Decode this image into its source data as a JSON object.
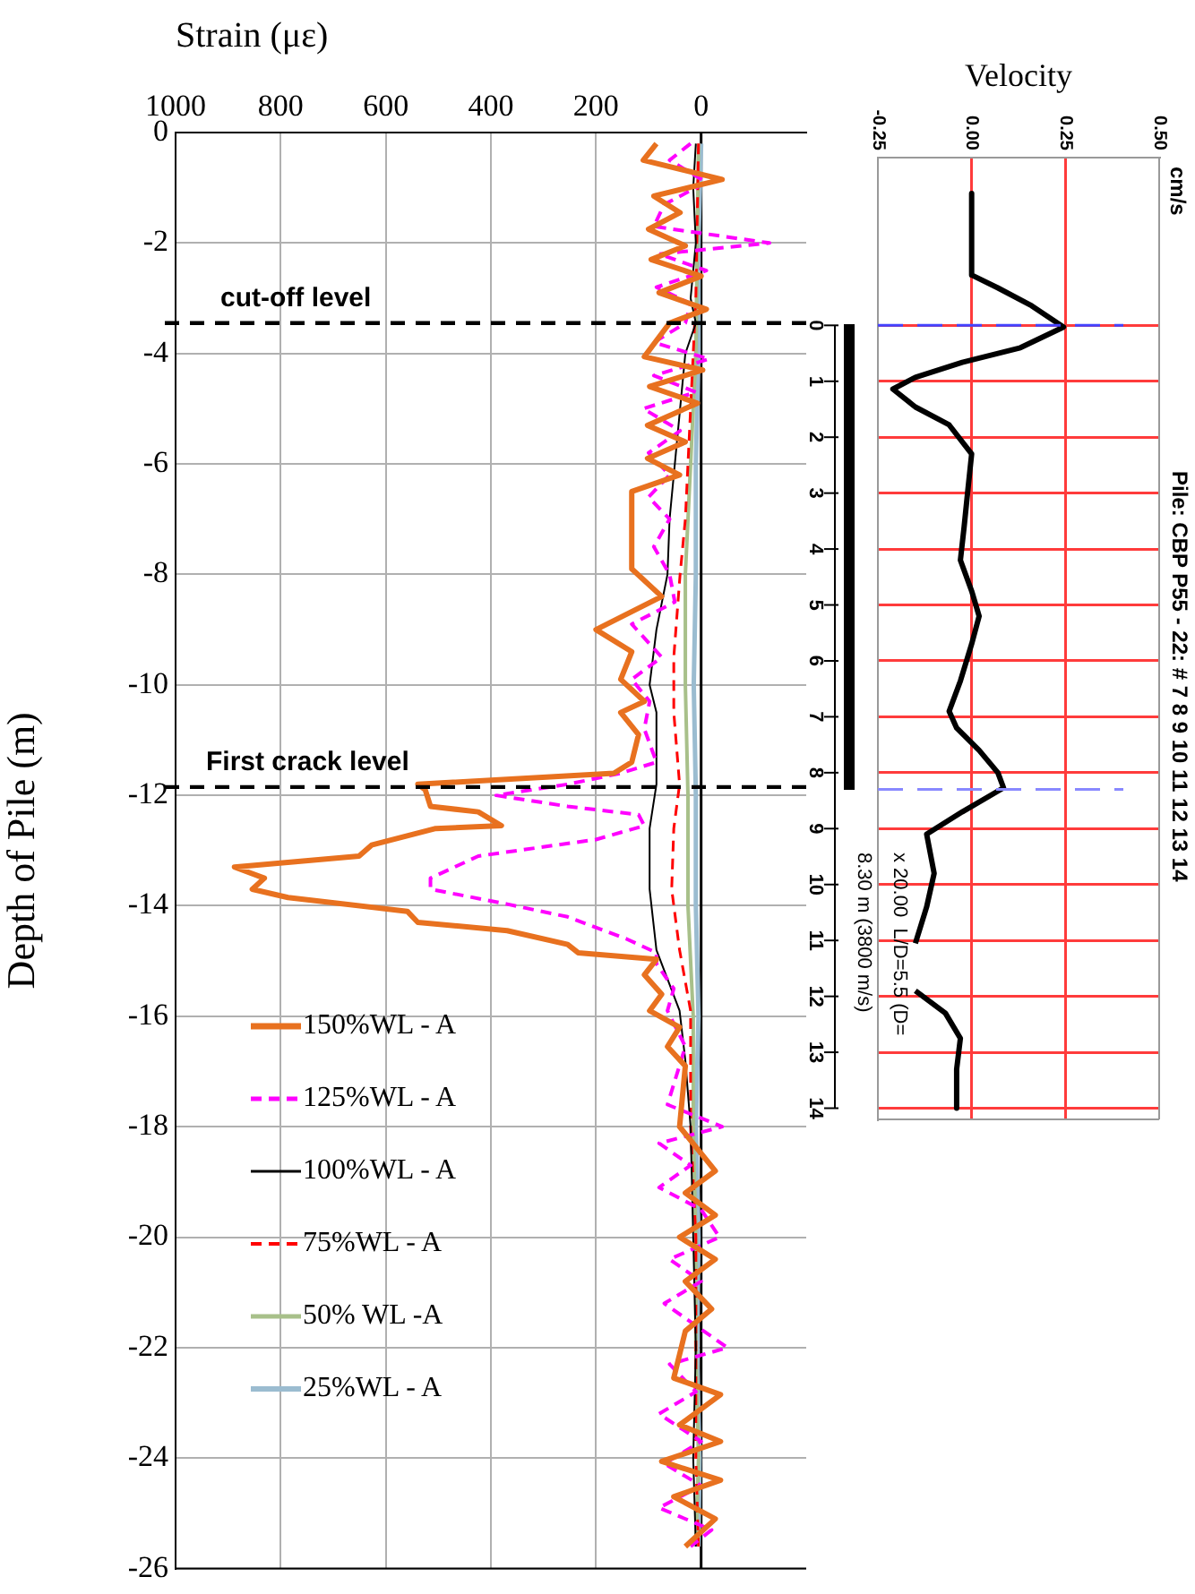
{
  "chart_data": [
    {
      "type": "line",
      "xlabel": "Strain (με)",
      "ylabel": "Depth of Pile (m)",
      "xlim": [
        1000,
        -200
      ],
      "xticks": [
        1000,
        800,
        600,
        400,
        200,
        0
      ],
      "ylim": [
        -26,
        0
      ],
      "yticks": [
        0,
        -2,
        -4,
        -6,
        -8,
        -10,
        -12,
        -14,
        -16,
        -18,
        -20,
        -22,
        -24,
        -26
      ],
      "grid": true,
      "legend": "bottom left",
      "ref_lines": [
        {
          "axis": "y",
          "value": -3.45,
          "label": "cut-off level",
          "color": "#000000",
          "line_style": "dashed"
        },
        {
          "axis": "y",
          "value": -11.85,
          "label": "First crack level",
          "color": "#000000",
          "line_style": "dashed"
        },
        {
          "axis": "x",
          "value": 0,
          "color": "#000000",
          "line_style": "solid"
        }
      ],
      "series": [
        {
          "name": "150%WL - A",
          "color": "#e8711f",
          "line_style": "solid",
          "x": [
            85,
            110,
            -40,
            90,
            40,
            100,
            30,
            95,
            0,
            80,
            -10,
            60,
            108,
            -3,
            98,
            7,
            102,
            30,
            102,
            41,
            132,
            132,
            75,
            200,
            132,
            153,
            108,
            153,
            119,
            132,
            166,
            539,
            525,
            515,
            424,
            380,
            505,
            627,
            651,
            888,
            831,
            854,
            786,
            559,
            539,
            369,
            254,
            234,
            85,
            108,
            75,
            98,
            41,
            64,
            30,
            41,
            -27,
            30,
            -27,
            41,
            -27,
            30,
            -20,
            30,
            52,
            -37,
            41,
            -37,
            75,
            -37,
            52,
            -27,
            30
          ],
          "values": [
            -0.2,
            -0.5,
            -0.85,
            -1.15,
            -1.45,
            -1.75,
            -2.05,
            -2.3,
            -2.6,
            -2.9,
            -3.2,
            -3.45,
            -4.06,
            -4.3,
            -4.6,
            -4.9,
            -5.3,
            -5.6,
            -5.9,
            -6.2,
            -6.5,
            -7.9,
            -8.4,
            -9.0,
            -9.4,
            -9.9,
            -10.3,
            -10.5,
            -10.9,
            -11.4,
            -11.6,
            -11.8,
            -11.9,
            -12.2,
            -12.3,
            -12.55,
            -12.6,
            -12.9,
            -13.1,
            -13.3,
            -13.5,
            -13.7,
            -13.85,
            -14.1,
            -14.3,
            -14.45,
            -14.7,
            -14.85,
            -14.97,
            -15.25,
            -15.6,
            -15.9,
            -16.2,
            -16.55,
            -16.9,
            -18.0,
            -18.8,
            -19.2,
            -19.6,
            -20.0,
            -20.4,
            -20.8,
            -21.3,
            -21.7,
            -22.55,
            -22.85,
            -23.4,
            -23.7,
            -24.06,
            -24.4,
            -24.7,
            -25.1,
            -25.6
          ]
        },
        {
          "name": "125%WL - A",
          "color": "#ff00ff",
          "line_style": "dashed",
          "x": [
            20,
            60,
            -10,
            70,
            90,
            -130,
            80,
            -10,
            85,
            20,
            30,
            90,
            -15,
            90,
            10,
            110,
            40,
            100,
            60,
            100,
            60,
            90,
            60,
            50,
            132,
            75,
            132,
            98,
            108,
            85,
            153,
            254,
            390,
            254,
            119,
            108,
            200,
            424,
            515,
            515,
            369,
            254,
            142,
            85,
            85,
            52,
            64,
            30,
            64,
            -40,
            80,
            20,
            80,
            0,
            -35,
            60,
            0,
            70,
            10,
            -50,
            60,
            10,
            80,
            0,
            70,
            0,
            80,
            -20,
            20
          ],
          "values": [
            -0.2,
            -0.5,
            -0.9,
            -1.3,
            -1.7,
            -2.0,
            -2.2,
            -2.5,
            -2.8,
            -3.1,
            -3.45,
            -3.8,
            -4.1,
            -4.4,
            -4.7,
            -5.0,
            -5.4,
            -5.8,
            -6.2,
            -6.6,
            -7.0,
            -7.5,
            -8.0,
            -8.5,
            -8.9,
            -9.5,
            -9.9,
            -10.3,
            -10.8,
            -11.4,
            -11.6,
            -11.8,
            -12.0,
            -12.2,
            -12.35,
            -12.55,
            -12.8,
            -13.1,
            -13.5,
            -13.7,
            -13.97,
            -14.2,
            -14.6,
            -14.85,
            -15.05,
            -15.5,
            -15.9,
            -16.55,
            -17.6,
            -18.0,
            -18.3,
            -18.7,
            -19.1,
            -19.5,
            -20.0,
            -20.4,
            -20.8,
            -21.2,
            -21.6,
            -22.0,
            -22.3,
            -22.8,
            -23.2,
            -23.7,
            -24.1,
            -24.5,
            -24.9,
            -25.3,
            -25.6
          ]
        },
        {
          "name": "100%WL - A",
          "color": "#000000",
          "line_style": "solid",
          "x": [
            10,
            15,
            10,
            20,
            10,
            30,
            40,
            50,
            60,
            64,
            85,
            98,
            85,
            85,
            98,
            98,
            85,
            41,
            30,
            20,
            15,
            10,
            15,
            10
          ],
          "values": [
            -0.2,
            -1,
            -2,
            -3,
            -3.45,
            -4,
            -5,
            -6,
            -7,
            -8,
            -9,
            -10,
            -10.5,
            -11.8,
            -12.6,
            -13.7,
            -14.8,
            -15.9,
            -16.8,
            -18,
            -20,
            -22,
            -24,
            -25.6
          ]
        },
        {
          "name": "75%WL - A",
          "color": "#ff0000",
          "line_style": "dashed",
          "x": [
            5,
            10,
            20,
            30,
            40,
            52,
            52,
            41,
            52,
            56,
            41,
            20,
            20,
            10,
            10,
            10,
            5
          ],
          "values": [
            -0.2,
            -3,
            -5,
            -7,
            -8,
            -9.5,
            -10.5,
            -11.8,
            -12.6,
            -13.7,
            -14.8,
            -15.9,
            -18,
            -20,
            -22,
            -24,
            -25.6
          ]
        },
        {
          "name": "50% WL -A",
          "color": "#a8c08a",
          "line_style": "solid",
          "x": [
            5,
            10,
            20,
            30,
            30,
            25,
            25,
            15,
            15,
            10,
            10,
            5,
            10
          ],
          "values": [
            -0.2,
            -4,
            -6,
            -8,
            -10,
            -12,
            -14,
            -16,
            -18,
            -20,
            -22,
            -24,
            -25.6
          ]
        },
        {
          "name": "25%WL - A",
          "color": "#9bbcd0",
          "line_style": "solid",
          "x": [
            0,
            5,
            5,
            10,
            10,
            14,
            10,
            10,
            5,
            10,
            5,
            8,
            3,
            5
          ],
          "values": [
            -0.2,
            -2,
            -4,
            -6,
            -8,
            -10,
            -12,
            -14,
            -16,
            -18,
            -20,
            -22,
            -24,
            -25.6
          ]
        }
      ]
    },
    {
      "type": "line",
      "title": "Velocity",
      "xlim": [
        -0.25,
        0.5
      ],
      "xticks": [
        {
          "value": -0.25,
          "label": "-0.25"
        },
        {
          "value": 0,
          "label": "0.00"
        },
        {
          "value": 0.25,
          "label": "0.25"
        },
        {
          "value": 0.5,
          "label": "0.50"
        }
      ],
      "ylim": [
        14.2,
        -3
      ],
      "yticks": [
        0,
        1,
        2,
        3,
        4,
        5,
        6,
        7,
        8,
        9,
        10,
        11,
        12,
        13,
        14
      ],
      "grid": true,
      "ref_lines": [
        {
          "axis": "y",
          "value": 0,
          "color": "#4444ff",
          "line_style": "dashed"
        },
        {
          "axis": "y",
          "value": 8.3,
          "color": "#8888ff",
          "line_style": "dashed"
        }
      ],
      "annotations": [
        "cm/s",
        "Pile: CBP P55 - 22: # 7 8 9 10 11 12 13 14",
        "x 20.00  L/D=5.5 (D=",
        "8.30 m (3800 m/s)"
      ],
      "series": [
        {
          "color": "#000000",
          "x": [
            0,
            0,
            0.07,
            0.16,
            0.245,
            0.13,
            -0.025,
            -0.15,
            -0.21,
            -0.15,
            -0.06,
            0,
            -0.01,
            -0.02,
            -0.03,
            0,
            0.02,
            0,
            -0.03,
            -0.06,
            -0.04,
            0.02,
            0.07,
            0.085,
            -0.025,
            -0.12,
            -0.1,
            -0.12,
            -0.15,
            null,
            -0.15,
            -0.07,
            -0.03,
            -0.04,
            -0.04
          ],
          "values": [
            -2.36,
            -0.9,
            -0.67,
            -0.35,
            0.03,
            0.4,
            0.66,
            0.93,
            1.14,
            1.46,
            1.78,
            2.3,
            2.94,
            3.6,
            4.2,
            4.75,
            5.2,
            5.7,
            6.36,
            6.9,
            7.2,
            7.6,
            8.0,
            8.27,
            8.7,
            9.1,
            9.8,
            10.4,
            11.05,
            null,
            11.9,
            12.3,
            12.75,
            13.3,
            14.0
          ]
        }
      ]
    }
  ]
}
